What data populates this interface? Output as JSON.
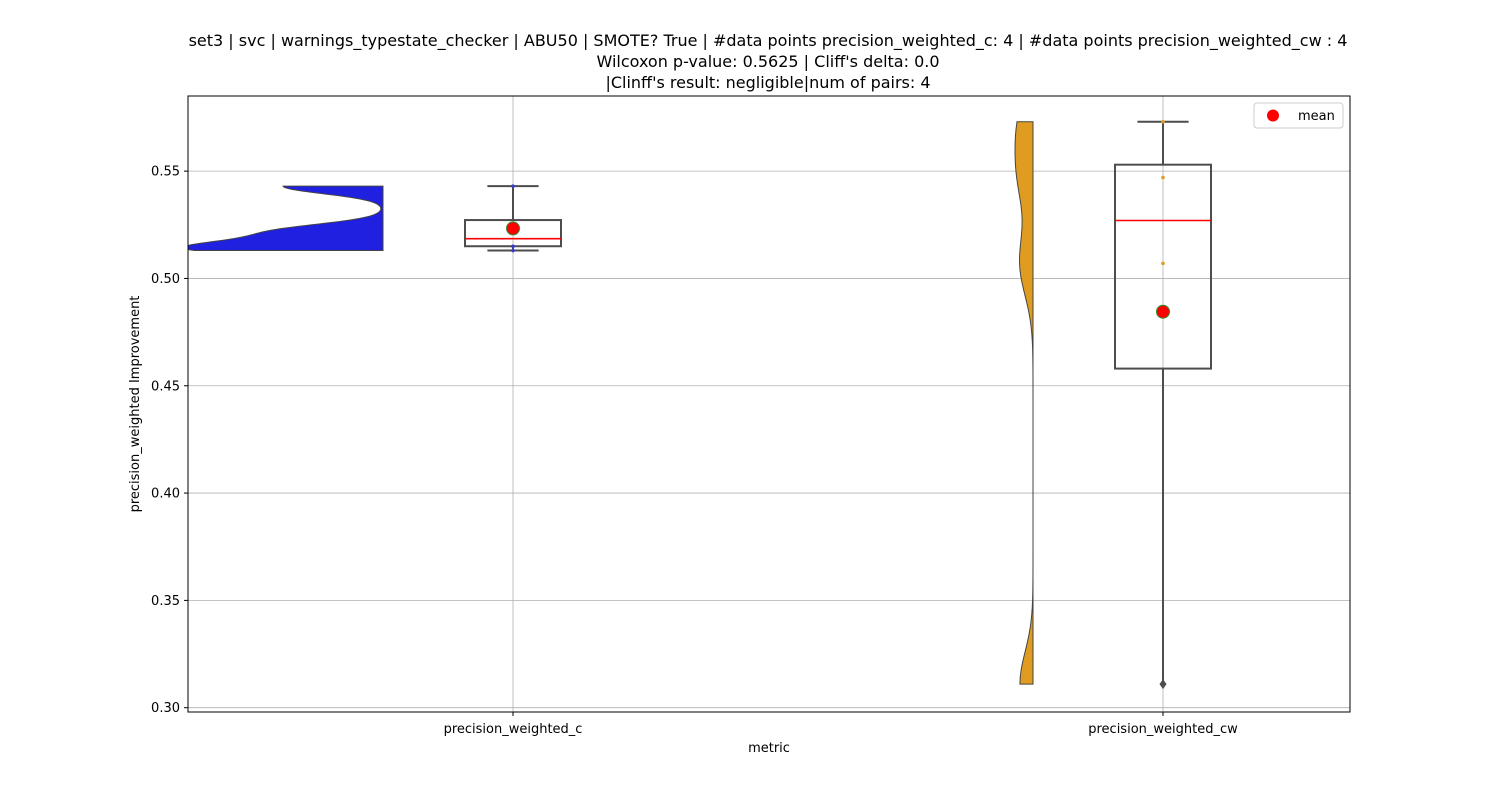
{
  "chart_data": {
    "type": "violin-box",
    "title_lines": [
      "set3 | svc | warnings_typestate_checker | ABU50 | SMOTE? True | #data points precision_weighted_c: 4 | #data points precision_weighted_cw : 4",
      "Wilcoxon p-value: 0.5625 | Cliff's delta: 0.0",
      "|Clinff's result: negligible|num of pairs: 4"
    ],
    "xlabel": "metric",
    "ylabel": "precision_weighted Improvement",
    "ylim": [
      0.298,
      0.585
    ],
    "yticks": [
      0.3,
      0.35,
      0.4,
      0.45,
      0.5,
      0.55
    ],
    "ytick_labels": [
      "0.30",
      "0.35",
      "0.40",
      "0.45",
      "0.50",
      "0.55"
    ],
    "categories": [
      "precision_weighted_c",
      "precision_weighted_cw"
    ],
    "grid": true,
    "legend": {
      "position": "upper right",
      "entries": [
        {
          "label": "mean",
          "color": "#ff0000"
        }
      ]
    },
    "series": [
      {
        "name": "precision_weighted_c",
        "violin_color": "#2020e0",
        "point_color": "#3a3ad0",
        "points": [
          0.513,
          0.515,
          0.522,
          0.543
        ],
        "box": {
          "min": 0.513,
          "q1": 0.515,
          "median": 0.5185,
          "q3": 0.5272,
          "max": 0.543
        },
        "mean": 0.5233,
        "outliers": []
      },
      {
        "name": "precision_weighted_cw",
        "violin_color": "#e09c20",
        "point_color": "#e09c20",
        "points": [
          0.311,
          0.507,
          0.547,
          0.573
        ],
        "box": {
          "min": 0.311,
          "q1": 0.458,
          "median": 0.527,
          "q3": 0.553,
          "max": 0.573
        },
        "mean": 0.4845,
        "outliers": [
          0.311
        ]
      }
    ]
  }
}
